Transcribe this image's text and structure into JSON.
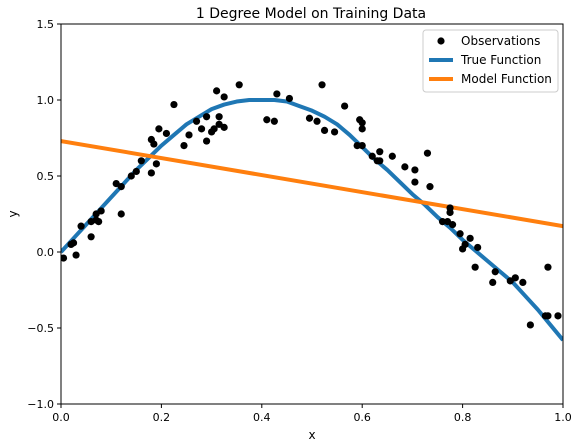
{
  "chart_data": {
    "type": "scatter",
    "title": "1 Degree Model on Training Data",
    "xlabel": "x",
    "ylabel": "y",
    "xlim": [
      0.0,
      1.0
    ],
    "ylim": [
      -1.0,
      1.5
    ],
    "x_ticks": [
      0.0,
      0.2,
      0.4,
      0.6,
      0.8,
      1.0
    ],
    "x_tick_labels": [
      "0.0",
      "0.2",
      "0.4",
      "0.6",
      "0.8",
      "1.0"
    ],
    "y_ticks": [
      -1.0,
      -0.5,
      0.0,
      0.5,
      1.0,
      1.5
    ],
    "y_tick_labels": [
      "−1.0",
      "−0.5",
      "0.0",
      "0.5",
      "1.0",
      "1.5"
    ],
    "grid": false,
    "legend_position": "top-right",
    "series": [
      {
        "name": "Observations",
        "kind": "scatter",
        "color": "#000000",
        "points": [
          [
            0.005,
            -0.04
          ],
          [
            0.02,
            0.05
          ],
          [
            0.025,
            0.06
          ],
          [
            0.03,
            -0.02
          ],
          [
            0.04,
            0.17
          ],
          [
            0.06,
            0.1
          ],
          [
            0.06,
            0.2
          ],
          [
            0.07,
            0.21
          ],
          [
            0.07,
            0.25
          ],
          [
            0.075,
            0.2
          ],
          [
            0.08,
            0.27
          ],
          [
            0.11,
            0.45
          ],
          [
            0.12,
            0.25
          ],
          [
            0.12,
            0.43
          ],
          [
            0.14,
            0.5
          ],
          [
            0.15,
            0.53
          ],
          [
            0.16,
            0.6
          ],
          [
            0.18,
            0.52
          ],
          [
            0.18,
            0.74
          ],
          [
            0.185,
            0.71
          ],
          [
            0.19,
            0.58
          ],
          [
            0.195,
            0.81
          ],
          [
            0.21,
            0.78
          ],
          [
            0.225,
            0.97
          ],
          [
            0.245,
            0.7
          ],
          [
            0.255,
            0.77
          ],
          [
            0.27,
            0.86
          ],
          [
            0.28,
            0.81
          ],
          [
            0.29,
            0.73
          ],
          [
            0.29,
            0.89
          ],
          [
            0.3,
            0.79
          ],
          [
            0.305,
            0.81
          ],
          [
            0.31,
            1.06
          ],
          [
            0.315,
            0.84
          ],
          [
            0.315,
            0.89
          ],
          [
            0.325,
            1.02
          ],
          [
            0.325,
            0.82
          ],
          [
            0.355,
            1.1
          ],
          [
            0.41,
            0.87
          ],
          [
            0.425,
            0.86
          ],
          [
            0.43,
            1.04
          ],
          [
            0.455,
            1.01
          ],
          [
            0.495,
            0.88
          ],
          [
            0.51,
            0.86
          ],
          [
            0.52,
            1.1
          ],
          [
            0.525,
            0.8
          ],
          [
            0.545,
            0.79
          ],
          [
            0.565,
            0.96
          ],
          [
            0.59,
            0.7
          ],
          [
            0.595,
            0.87
          ],
          [
            0.6,
            0.85
          ],
          [
            0.6,
            0.81
          ],
          [
            0.6,
            0.7
          ],
          [
            0.62,
            0.63
          ],
          [
            0.63,
            0.6
          ],
          [
            0.635,
            0.66
          ],
          [
            0.635,
            0.6
          ],
          [
            0.66,
            0.63
          ],
          [
            0.685,
            0.56
          ],
          [
            0.705,
            0.54
          ],
          [
            0.705,
            0.46
          ],
          [
            0.73,
            0.65
          ],
          [
            0.735,
            0.43
          ],
          [
            0.76,
            0.2
          ],
          [
            0.77,
            0.2
          ],
          [
            0.775,
            0.29
          ],
          [
            0.775,
            0.26
          ],
          [
            0.78,
            0.18
          ],
          [
            0.795,
            0.12
          ],
          [
            0.8,
            0.02
          ],
          [
            0.805,
            0.05
          ],
          [
            0.815,
            0.09
          ],
          [
            0.825,
            -0.1
          ],
          [
            0.83,
            0.03
          ],
          [
            0.86,
            -0.2
          ],
          [
            0.865,
            -0.13
          ],
          [
            0.895,
            -0.19
          ],
          [
            0.905,
            -0.17
          ],
          [
            0.92,
            -0.2
          ],
          [
            0.935,
            -0.48
          ],
          [
            0.965,
            -0.42
          ],
          [
            0.97,
            -0.42
          ],
          [
            0.97,
            -0.1
          ],
          [
            0.99,
            -0.42
          ]
        ]
      },
      {
        "name": "True Function",
        "kind": "line",
        "color": "#1f77b4",
        "points": [
          [
            0.0,
            0.0
          ],
          [
            0.025,
            0.09
          ],
          [
            0.05,
            0.18
          ],
          [
            0.075,
            0.27
          ],
          [
            0.1,
            0.36
          ],
          [
            0.125,
            0.45
          ],
          [
            0.15,
            0.54
          ],
          [
            0.175,
            0.62
          ],
          [
            0.2,
            0.7
          ],
          [
            0.225,
            0.77
          ],
          [
            0.25,
            0.84
          ],
          [
            0.275,
            0.89
          ],
          [
            0.3,
            0.94
          ],
          [
            0.325,
            0.97
          ],
          [
            0.35,
            0.99
          ],
          [
            0.375,
            1.0
          ],
          [
            0.4,
            1.0
          ],
          [
            0.425,
            1.0
          ],
          [
            0.45,
            0.99
          ],
          [
            0.475,
            0.96
          ],
          [
            0.5,
            0.93
          ],
          [
            0.525,
            0.89
          ],
          [
            0.55,
            0.84
          ],
          [
            0.575,
            0.77
          ],
          [
            0.6,
            0.69
          ],
          [
            0.625,
            0.61
          ],
          [
            0.65,
            0.54
          ],
          [
            0.675,
            0.46
          ],
          [
            0.7,
            0.38
          ],
          [
            0.725,
            0.31
          ],
          [
            0.75,
            0.23
          ],
          [
            0.775,
            0.16
          ],
          [
            0.8,
            0.08
          ],
          [
            0.825,
            0.01
          ],
          [
            0.85,
            -0.06
          ],
          [
            0.875,
            -0.13
          ],
          [
            0.9,
            -0.2
          ],
          [
            0.925,
            -0.29
          ],
          [
            0.95,
            -0.38
          ],
          [
            0.975,
            -0.48
          ],
          [
            1.0,
            -0.58
          ]
        ]
      },
      {
        "name": "Model Function",
        "kind": "line",
        "color": "#ff7f0e",
        "points": [
          [
            0.0,
            0.73
          ],
          [
            1.0,
            0.17
          ]
        ]
      }
    ]
  }
}
